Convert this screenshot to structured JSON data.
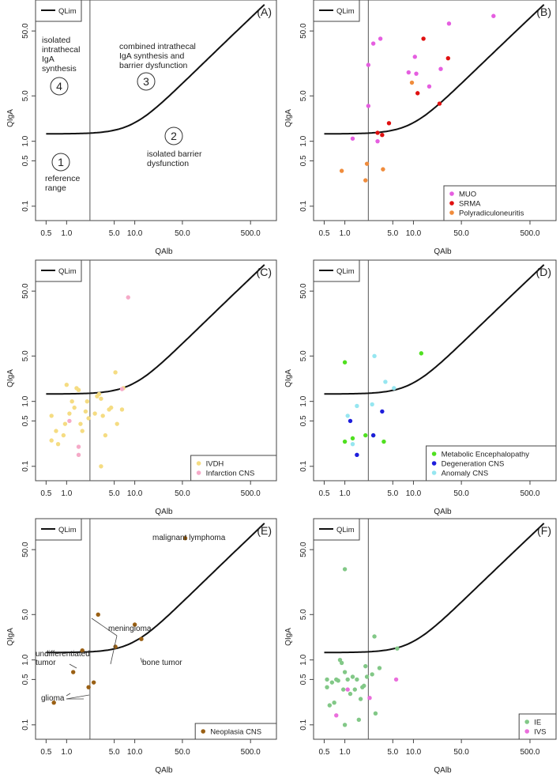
{
  "chart_data": [
    {
      "type": "scatter",
      "panel_label": "(A)",
      "xlabel": "QAlb",
      "ylabel": "QIgA",
      "xscale": "log",
      "yscale": "log",
      "xlim": [
        0.35,
        1200
      ],
      "ylim": [
        0.06,
        150
      ],
      "x_ticks": [
        "0.5",
        "1.0",
        "5.0",
        "10.0",
        "50.0",
        "500.0"
      ],
      "y_ticks": [
        "0.1",
        "0.5",
        "1.0",
        "5.0",
        "50.0"
      ],
      "qlim_legend": "QLim",
      "vertical_line_x": 2.2,
      "series": [],
      "legend_position": "bottom-right",
      "regions": [
        {
          "number": "1",
          "lines": [
            "reference",
            "range"
          ]
        },
        {
          "number": "2",
          "lines": [
            "isolated barrier",
            "dysfunction"
          ]
        },
        {
          "number": "3",
          "lines": [
            "combined intrathecal",
            "IgA synthesis and",
            "barrier dysfunction"
          ]
        },
        {
          "number": "4",
          "lines": [
            "isolated",
            "intrathecal",
            "IgA",
            "synthesis"
          ]
        }
      ],
      "annotations": []
    },
    {
      "type": "scatter",
      "panel_label": "(B)",
      "xlabel": "QAlb",
      "ylabel": "QIgA",
      "xscale": "log",
      "yscale": "log",
      "xlim": [
        0.35,
        1200
      ],
      "ylim": [
        0.06,
        150
      ],
      "x_ticks": [
        "0.5",
        "1.0",
        "5.0",
        "10.0",
        "50.0",
        "500.0"
      ],
      "y_ticks": [
        "0.1",
        "0.5",
        "1.0",
        "5.0",
        "50.0"
      ],
      "qlim_legend": "QLim",
      "vertical_line_x": 2.2,
      "legend_position": "bottom-right",
      "series": [
        {
          "name": "MUO",
          "color": "#e55ee0",
          "points": [
            [
              2.2,
              15
            ],
            [
              2.6,
              32
            ],
            [
              3.3,
              38
            ],
            [
              2.2,
              3.5
            ],
            [
              3,
              1
            ],
            [
              1.3,
              1.1
            ],
            [
              10.5,
              20
            ],
            [
              11,
              11
            ],
            [
              8.5,
              11.5
            ],
            [
              17,
              7
            ],
            [
              25,
              13
            ],
            [
              33,
              65
            ],
            [
              147,
              85
            ]
          ]
        },
        {
          "name": "SRMA",
          "color": "#e01010",
          "points": [
            [
              3,
              1.35
            ],
            [
              3.5,
              1.25
            ],
            [
              4.4,
              1.9
            ],
            [
              11.5,
              5.5
            ],
            [
              14,
              38
            ],
            [
              24,
              3.8
            ],
            [
              32,
              19
            ]
          ]
        },
        {
          "name": "Polyradiculoneuritis",
          "color": "#f08c3c",
          "points": [
            [
              0.9,
              0.35
            ],
            [
              2.1,
              0.45
            ],
            [
              2,
              0.25
            ],
            [
              3.6,
              0.37
            ],
            [
              9.5,
              8
            ]
          ]
        }
      ],
      "regions": [],
      "annotations": []
    },
    {
      "type": "scatter",
      "panel_label": "(C)",
      "xlabel": "QAlb",
      "ylabel": "QIgA",
      "xscale": "log",
      "yscale": "log",
      "xlim": [
        0.35,
        1200
      ],
      "ylim": [
        0.06,
        150
      ],
      "x_ticks": [
        "0.5",
        "1.0",
        "5.0",
        "10.0",
        "50.0",
        "500.0"
      ],
      "y_ticks": [
        "0.1",
        "0.5",
        "1.0",
        "5.0",
        "50.0"
      ],
      "qlim_legend": "QLim",
      "vertical_line_x": 2.2,
      "legend_position": "bottom-right",
      "series": [
        {
          "name": "IVDH",
          "color": "#f5dc82",
          "points": [
            [
              0.6,
              0.6
            ],
            [
              0.6,
              0.25
            ],
            [
              0.7,
              0.35
            ],
            [
              0.75,
              0.22
            ],
            [
              0.9,
              0.3
            ],
            [
              0.95,
              0.45
            ],
            [
              1.0,
              1.8
            ],
            [
              1.1,
              0.65
            ],
            [
              1.2,
              1.0
            ],
            [
              1.3,
              0.8
            ],
            [
              1.4,
              1.6
            ],
            [
              1.5,
              1.5
            ],
            [
              1.6,
              0.45
            ],
            [
              1.7,
              0.35
            ],
            [
              1.9,
              0.7
            ],
            [
              2.0,
              1.0
            ],
            [
              2.1,
              0.55
            ],
            [
              2.6,
              0.65
            ],
            [
              2.8,
              1.2
            ],
            [
              3.0,
              1.3
            ],
            [
              3.2,
              1.1
            ],
            [
              3.4,
              0.6
            ],
            [
              3.7,
              0.3
            ],
            [
              4.2,
              0.75
            ],
            [
              4.5,
              0.8
            ],
            [
              5.2,
              2.8
            ],
            [
              5.5,
              0.45
            ],
            [
              6.5,
              0.75
            ],
            [
              6.8,
              1.6
            ],
            [
              3.2,
              0.1
            ]
          ]
        },
        {
          "name": "Infarction CNS",
          "color": "#f5aac8",
          "points": [
            [
              1.5,
              0.2
            ],
            [
              1.5,
              0.15
            ],
            [
              1.1,
              0.5
            ],
            [
              6.5,
              1.55
            ],
            [
              8,
              40
            ]
          ]
        }
      ],
      "regions": [],
      "annotations": []
    },
    {
      "type": "scatter",
      "panel_label": "(D)",
      "xlabel": "QAlb",
      "ylabel": "QIgA",
      "xscale": "log",
      "yscale": "log",
      "xlim": [
        0.35,
        1200
      ],
      "ylim": [
        0.06,
        150
      ],
      "x_ticks": [
        "0.5",
        "1.0",
        "5.0",
        "10.0",
        "50.0",
        "500.0"
      ],
      "y_ticks": [
        "0.1",
        "0.5",
        "1.0",
        "5.0",
        "50.0"
      ],
      "qlim_legend": "QLim",
      "vertical_line_x": 2.2,
      "legend_position": "bottom-right",
      "series": [
        {
          "name": "Metabolic Encephalopathy",
          "color": "#50e020",
          "points": [
            [
              1.0,
              4.0
            ],
            [
              1.0,
              0.24
            ],
            [
              1.3,
              0.27
            ],
            [
              2.0,
              0.3
            ],
            [
              2.6,
              0.3
            ],
            [
              3.7,
              0.24
            ],
            [
              13,
              5.5
            ]
          ]
        },
        {
          "name": "Degeneration CNS",
          "color": "#1e1edc",
          "points": [
            [
              1.2,
              0.5
            ],
            [
              1.5,
              0.15
            ],
            [
              2.6,
              0.3
            ],
            [
              3.5,
              0.7
            ]
          ]
        },
        {
          "name": "Anomaly CNS",
          "color": "#96e6f0",
          "points": [
            [
              1.1,
              0.6
            ],
            [
              1.5,
              0.85
            ],
            [
              2.5,
              0.9
            ],
            [
              2.7,
              5.0
            ],
            [
              3.9,
              2.0
            ],
            [
              5.2,
              1.6
            ],
            [
              1.3,
              0.22
            ]
          ]
        }
      ],
      "regions": [],
      "annotations": []
    },
    {
      "type": "scatter",
      "panel_label": "(E)",
      "xlabel": "QAlb",
      "ylabel": "QIgA",
      "xscale": "log",
      "yscale": "log",
      "xlim": [
        0.35,
        1200
      ],
      "ylim": [
        0.06,
        150
      ],
      "x_ticks": [
        "0.5",
        "1.0",
        "5.0",
        "10.0",
        "50.0",
        "500.0"
      ],
      "y_ticks": [
        "0.1",
        "0.5",
        "1.0",
        "5.0",
        "50.0"
      ],
      "qlim_legend": "QLim",
      "vertical_line_x": 2.2,
      "legend_position": "bottom-right",
      "series": [
        {
          "name": "Neoplasia CNS",
          "color": "#9a6014",
          "points": [
            [
              0.65,
              0.22
            ],
            [
              1.25,
              0.65
            ],
            [
              1.7,
              1.4
            ],
            [
              2.1,
              0.38
            ],
            [
              2.5,
              0.45
            ],
            [
              2.9,
              5.0
            ],
            [
              5.2,
              1.6
            ],
            [
              10,
              3.5
            ],
            [
              12.5,
              2.1
            ],
            [
              55,
              75
            ]
          ]
        }
      ],
      "regions": [],
      "annotations": [
        {
          "lines": [
            "malignant  lymphoma"
          ]
        },
        {
          "lines": [
            "meningioma"
          ]
        },
        {
          "lines": [
            "bone tumor"
          ]
        },
        {
          "lines": [
            "undifferentiated",
            "tumor"
          ]
        },
        {
          "lines": [
            "glioma"
          ]
        }
      ]
    },
    {
      "type": "scatter",
      "panel_label": "(F)",
      "xlabel": "QAlb",
      "ylabel": "QIgA",
      "xscale": "log",
      "yscale": "log",
      "xlim": [
        0.35,
        1200
      ],
      "ylim": [
        0.06,
        150
      ],
      "x_ticks": [
        "0.5",
        "1.0",
        "5.0",
        "10.0",
        "50.0",
        "500.0"
      ],
      "y_ticks": [
        "0.1",
        "0.5",
        "1.0",
        "5.0",
        "50.0"
      ],
      "qlim_legend": "QLim",
      "vertical_line_x": 2.2,
      "legend_position": "bottom-right",
      "series": [
        {
          "name": "IE",
          "color": "#82c887",
          "points": [
            [
              1.0,
              25
            ],
            [
              0.55,
              0.5
            ],
            [
              0.55,
              0.38
            ],
            [
              0.6,
              0.2
            ],
            [
              0.65,
              0.45
            ],
            [
              0.7,
              0.22
            ],
            [
              0.75,
              0.5
            ],
            [
              0.8,
              0.48
            ],
            [
              0.85,
              1.0
            ],
            [
              0.9,
              0.9
            ],
            [
              0.95,
              0.35
            ],
            [
              1.0,
              0.65
            ],
            [
              1.0,
              0.1
            ],
            [
              1.1,
              0.5
            ],
            [
              1.2,
              0.3
            ],
            [
              1.3,
              0.55
            ],
            [
              1.4,
              0.35
            ],
            [
              1.5,
              0.5
            ],
            [
              1.6,
              0.12
            ],
            [
              1.7,
              0.25
            ],
            [
              1.8,
              0.38
            ],
            [
              1.9,
              0.4
            ],
            [
              2.0,
              0.8
            ],
            [
              2.1,
              0.55
            ],
            [
              2.5,
              0.6
            ],
            [
              2.7,
              2.3
            ],
            [
              2.8,
              0.15
            ],
            [
              3.2,
              0.75
            ],
            [
              5.8,
              1.5
            ]
          ]
        },
        {
          "name": "IVS",
          "color": "#ea6edc",
          "points": [
            [
              0.75,
              0.14
            ],
            [
              1.1,
              0.35
            ],
            [
              2.3,
              0.26
            ],
            [
              5.6,
              0.5
            ]
          ]
        }
      ],
      "regions": [],
      "annotations": []
    }
  ]
}
